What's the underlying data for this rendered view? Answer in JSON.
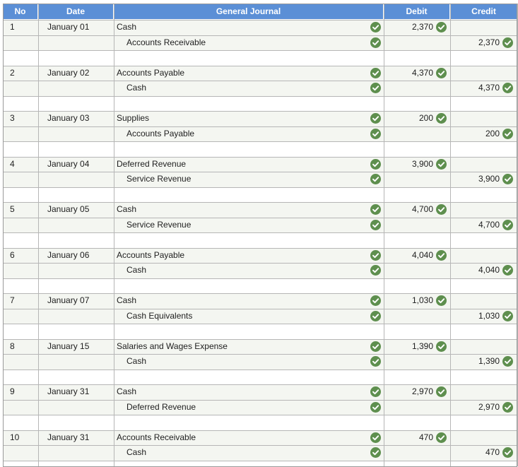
{
  "headers": {
    "no": "No",
    "date": "Date",
    "account": "General Journal",
    "debit": "Debit",
    "credit": "Credit"
  },
  "entries": [
    {
      "no": "1",
      "date": "January 01",
      "debit_account": "Cash",
      "credit_account": "Accounts Receivable",
      "amount": "2,370"
    },
    {
      "no": "2",
      "date": "January 02",
      "debit_account": "Accounts Payable",
      "credit_account": "Cash",
      "amount": "4,370"
    },
    {
      "no": "3",
      "date": "January 03",
      "debit_account": "Supplies",
      "credit_account": "Accounts Payable",
      "amount": "200"
    },
    {
      "no": "4",
      "date": "January 04",
      "debit_account": "Deferred Revenue",
      "credit_account": "Service Revenue",
      "amount": "3,900"
    },
    {
      "no": "5",
      "date": "January 05",
      "debit_account": "Cash",
      "credit_account": "Service Revenue",
      "amount": "4,700"
    },
    {
      "no": "6",
      "date": "January 06",
      "debit_account": "Accounts Payable",
      "credit_account": "Cash",
      "amount": "4,040"
    },
    {
      "no": "7",
      "date": "January 07",
      "debit_account": "Cash",
      "credit_account": "Cash Equivalents",
      "amount": "1,030"
    },
    {
      "no": "8",
      "date": "January 15",
      "debit_account": "Salaries and Wages Expense",
      "credit_account": "Cash",
      "amount": "1,390"
    },
    {
      "no": "9",
      "date": "January 31",
      "debit_account": "Cash",
      "credit_account": "Deferred Revenue",
      "amount": "2,970"
    },
    {
      "no": "10",
      "date": "January 31",
      "debit_account": "Accounts Receivable",
      "credit_account": "Cash",
      "amount": "470"
    }
  ],
  "icons": {
    "correct": "check-circle-icon"
  },
  "colors": {
    "header_bg": "#5b8fd6",
    "header_text": "#ffffff",
    "check_bg": "#5e8f4e",
    "row_shade": "#f4f6f1",
    "grid": "#b6b6b6"
  }
}
